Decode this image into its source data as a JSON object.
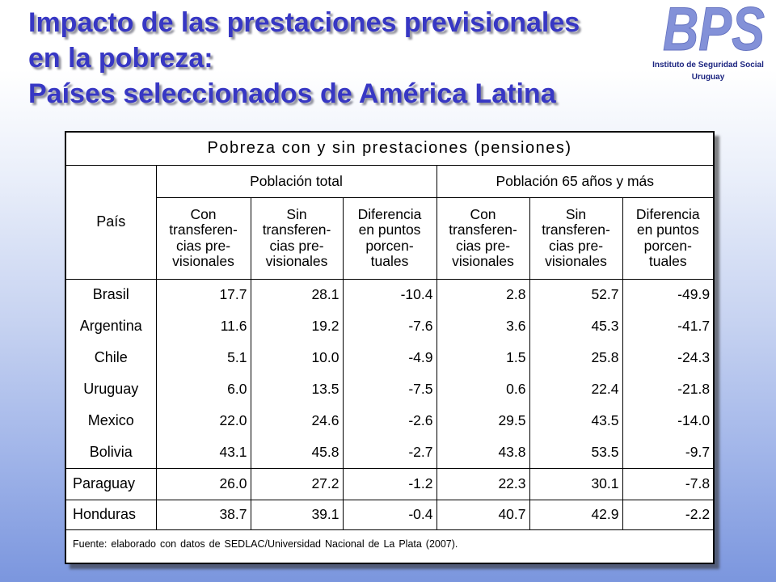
{
  "slide": {
    "title_lines": [
      "Impacto de las prestaciones previsionales",
      "en la pobreza:",
      "Países seleccionados de América Latina"
    ]
  },
  "logo": {
    "mark": "BPS",
    "institution": "Instituto de Seguridad Social",
    "country": "Uruguay"
  },
  "table": {
    "caption": "Pobreza con y sin prestaciones (pensiones)",
    "country_header": "País",
    "groups": [
      "Población total",
      "Población 65 años y más"
    ],
    "subheaders": [
      "Con\ntransferen-\ncias pre-\nvisionales",
      "Sin\ntransferen-\ncias pre-\nvisionales",
      "Diferencia\nen puntos\nporcen-\ntuales",
      "Con\ntransferen-\ncias pre-\nvisionales",
      "Sin\ntransferen-\ncias pre-\nvisionales",
      "Diferencia\nen puntos\nporcen-\ntuales"
    ],
    "rows": [
      {
        "country": "Brasil",
        "values": [
          "17.7",
          "28.1",
          "-10.4",
          "2.8",
          "52.7",
          "-49.9"
        ]
      },
      {
        "country": "Argentina",
        "values": [
          "11.6",
          "19.2",
          "-7.6",
          "3.6",
          "45.3",
          "-41.7"
        ]
      },
      {
        "country": "Chile",
        "values": [
          "5.1",
          "10.0",
          "-4.9",
          "1.5",
          "25.8",
          "-24.3"
        ]
      },
      {
        "country": "Uruguay",
        "values": [
          "6.0",
          "13.5",
          "-7.5",
          "0.6",
          "22.4",
          "-21.8"
        ]
      },
      {
        "country": "Mexico",
        "values": [
          "22.0",
          "24.6",
          "-2.6",
          "29.5",
          "43.5",
          "-14.0"
        ]
      },
      {
        "country": "Bolivia",
        "values": [
          "43.1",
          "45.8",
          "-2.7",
          "43.8",
          "53.5",
          "-9.7"
        ]
      },
      {
        "country": "Paraguay",
        "values": [
          "26.0",
          "27.2",
          "-1.2",
          "22.3",
          "30.1",
          "-7.8"
        ]
      },
      {
        "country": "Honduras",
        "values": [
          "38.7",
          "39.1",
          "-0.4",
          "40.7",
          "42.9",
          "-2.2"
        ]
      }
    ],
    "source": "Fuente: elaborado con datos de SEDLAC/Universidad Nacional de La Plata (2007)."
  },
  "colors": {
    "title": "#3737c4",
    "logo": "#8391d8",
    "logo_text": "#1c2580",
    "table_border": "#000000",
    "background_bottom": "#7b96de"
  }
}
